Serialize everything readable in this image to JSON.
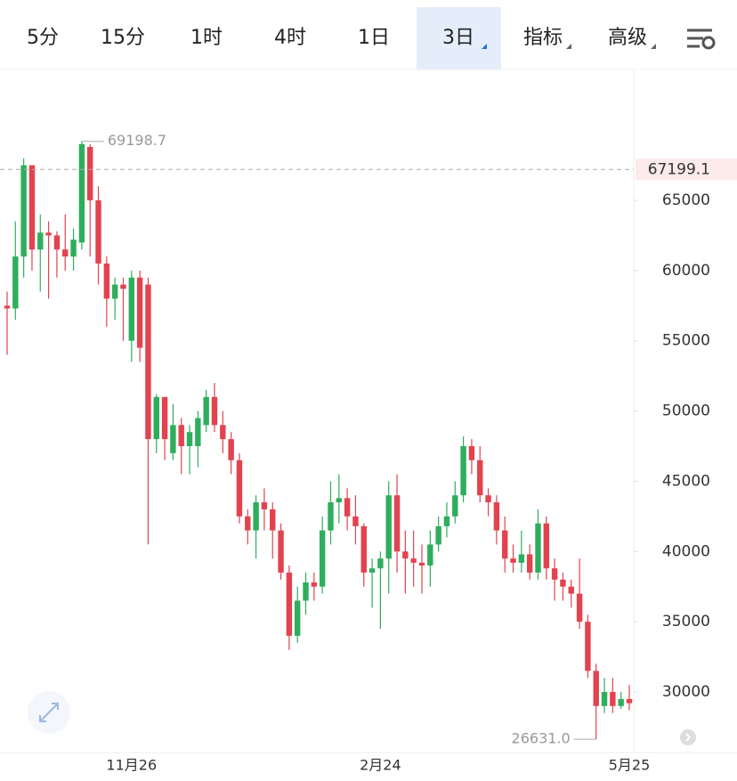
{
  "tabs": [
    {
      "label": "5分",
      "active": false,
      "dropdown": false
    },
    {
      "label": "15分",
      "active": false,
      "dropdown": false
    },
    {
      "label": "1时",
      "active": false,
      "dropdown": false
    },
    {
      "label": "4时",
      "active": false,
      "dropdown": false
    },
    {
      "label": "1日",
      "active": false,
      "dropdown": false
    },
    {
      "label": "3日",
      "active": true,
      "dropdown": true
    },
    {
      "label": "指标",
      "active": false,
      "dropdown": true
    },
    {
      "label": "高级",
      "active": false,
      "dropdown": true
    }
  ],
  "chart_data": {
    "type": "candlestick",
    "up_color": "#2eae5c",
    "down_color": "#e2434f",
    "categories": [
      null,
      null,
      null,
      null,
      null,
      null,
      null,
      null,
      null,
      null,
      null,
      null,
      null,
      null,
      null,
      "11月26",
      null,
      null,
      null,
      null,
      null,
      null,
      null,
      null,
      null,
      null,
      null,
      null,
      null,
      null,
      null,
      null,
      null,
      null,
      null,
      null,
      null,
      null,
      null,
      null,
      null,
      null,
      null,
      null,
      null,
      "2月24",
      null,
      null,
      null,
      null,
      null,
      null,
      null,
      null,
      null,
      null,
      null,
      null,
      null,
      null,
      null,
      null,
      null,
      null,
      null,
      null,
      null,
      null,
      null,
      null,
      null,
      null,
      null,
      null,
      null,
      "5月25"
    ],
    "open": [
      57500,
      57300,
      61000,
      67500,
      61500,
      62700,
      62500,
      61500,
      61000,
      62000,
      68800,
      65000,
      60500,
      58000,
      59000,
      55000,
      59500,
      59000,
      48000,
      51000,
      47000,
      49000,
      47500,
      47500,
      49000,
      51000,
      49000,
      48000,
      46500,
      42500,
      41500,
      43500,
      43000,
      41500,
      38500,
      34000,
      36500,
      37800,
      37500,
      41500,
      43500,
      43800,
      42500,
      41800,
      38500,
      38800,
      39500,
      44000,
      40000,
      39500,
      39200,
      39000,
      40500,
      41800,
      42500,
      44000,
      47500,
      46500,
      44000,
      43500,
      41500,
      39500,
      39200,
      39800,
      38500,
      42000,
      38800,
      38000,
      37500,
      37000,
      35000,
      31500,
      29000,
      30000,
      29000,
      29500
    ],
    "high": [
      58500,
      63500,
      68000,
      67500,
      64000,
      63500,
      62800,
      64000,
      63000,
      69198.7,
      69000,
      66000,
      61000,
      59500,
      59500,
      60000,
      60000,
      59500,
      51200,
      51000,
      50500,
      49500,
      49000,
      50000,
      51500,
      52000,
      50000,
      48500,
      47000,
      43000,
      44000,
      44500,
      43500,
      42000,
      39000,
      37500,
      38500,
      38500,
      42500,
      45000,
      45500,
      44500,
      44000,
      42000,
      39500,
      40000,
      45000,
      45500,
      41500,
      41500,
      40500,
      41500,
      42500,
      43500,
      45000,
      48200,
      48000,
      47500,
      44500,
      44000,
      42500,
      40500,
      41500,
      40500,
      43000,
      42500,
      39500,
      38500,
      38000,
      39500,
      35500,
      32000,
      31000,
      31000,
      30000,
      30500
    ],
    "low": [
      54000,
      56500,
      59500,
      60000,
      58500,
      58000,
      59500,
      60000,
      60000,
      61500,
      61000,
      59000,
      56000,
      56500,
      55000,
      53500,
      53500,
      40500,
      47000,
      46500,
      46500,
      45500,
      45500,
      46000,
      48500,
      48500,
      47000,
      45500,
      42000,
      40500,
      39500,
      41500,
      39500,
      38000,
      33000,
      33500,
      35500,
      36500,
      37000,
      40500,
      42000,
      41500,
      40500,
      37500,
      36000,
      34500,
      37000,
      38500,
      37000,
      37500,
      37000,
      37500,
      40000,
      41000,
      42000,
      43500,
      45500,
      43500,
      42500,
      40500,
      38500,
      38500,
      38500,
      38000,
      38000,
      38000,
      36500,
      36500,
      36000,
      34500,
      31000,
      26631,
      28500,
      28500,
      28800,
      28700
    ],
    "close": [
      57300,
      61000,
      67500,
      61500,
      62700,
      62500,
      61500,
      61000,
      62200,
      69000,
      65000,
      60500,
      58000,
      59000,
      58700,
      59500,
      54500,
      48000,
      51000,
      48000,
      49000,
      47500,
      48500,
      49500,
      51000,
      49000,
      48000,
      46500,
      42500,
      41500,
      43500,
      43000,
      41500,
      38500,
      34000,
      36500,
      37800,
      37500,
      41500,
      43500,
      43800,
      42500,
      41800,
      38500,
      38800,
      39500,
      44000,
      40000,
      39500,
      39200,
      39000,
      40500,
      41800,
      42500,
      44000,
      47500,
      46500,
      44000,
      43500,
      41500,
      39500,
      39200,
      39800,
      38500,
      42000,
      38800,
      38000,
      37500,
      37000,
      35000,
      31500,
      29000,
      30000,
      29000,
      29500,
      29200
    ],
    "ylim": [
      25690,
      74190
    ],
    "yticks": [
      30000,
      35000,
      40000,
      45000,
      50000,
      55000,
      60000,
      65000
    ],
    "max_marker": 69198.7,
    "min_marker": {
      "value": 26631,
      "label": "26631.0"
    },
    "price_line": 67199.1
  }
}
